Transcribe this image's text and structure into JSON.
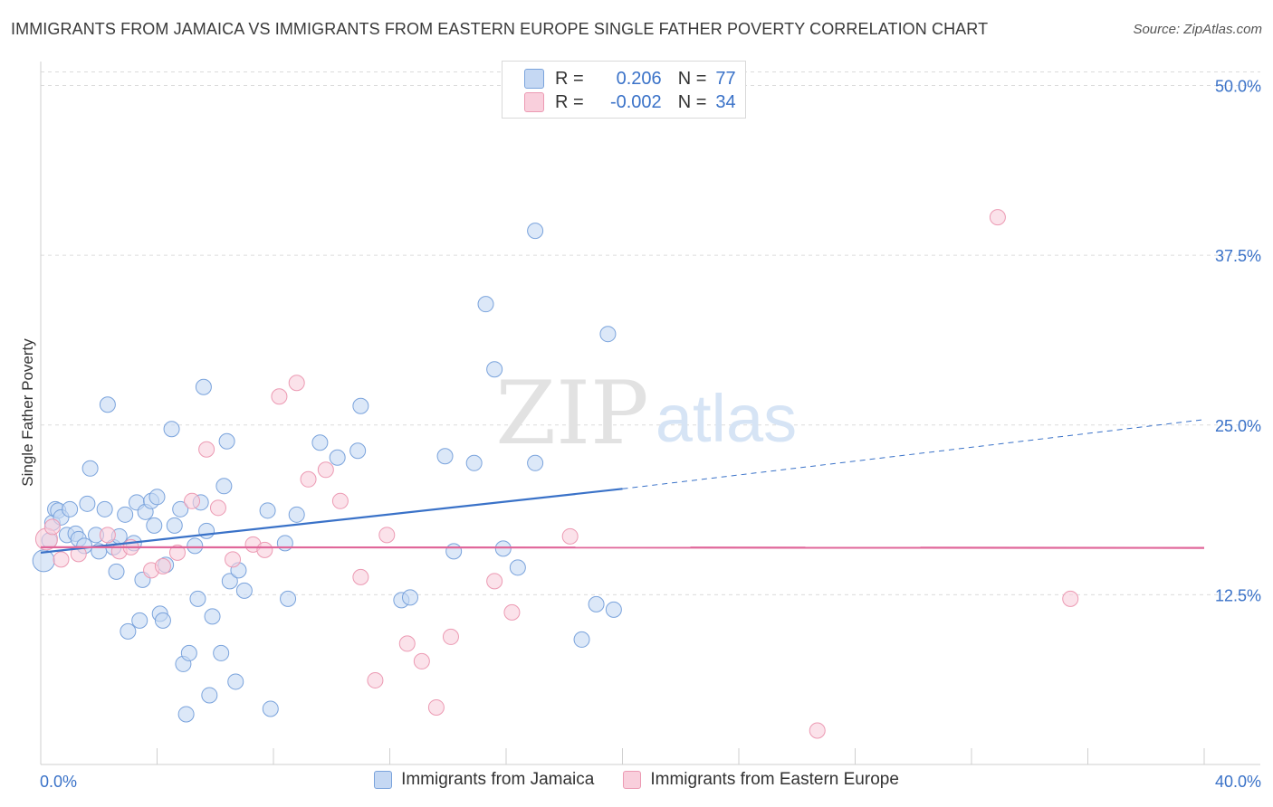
{
  "title": "IMMIGRANTS FROM JAMAICA VS IMMIGRANTS FROM EASTERN EUROPE SINGLE FATHER POVERTY CORRELATION CHART",
  "source": "Source: ZipAtlas.com",
  "watermark": {
    "zip": "ZIP",
    "atlas": "atlas"
  },
  "stats": [
    {
      "r_label": "R =",
      "r_value": "0.206",
      "n_label": "N =",
      "n_value": "77",
      "color": "#7aa3dc"
    },
    {
      "r_label": "R =",
      "r_value": "-0.002",
      "n_label": "N =",
      "n_value": "34",
      "color": "#ec9ab3"
    }
  ],
  "legend": [
    {
      "label": "Immigrants from Jamaica",
      "color": "#7aa3dc"
    },
    {
      "label": "Immigrants from Eastern Europe",
      "color": "#ec9ab3"
    }
  ],
  "chart_data": {
    "type": "scatter",
    "ylabel": "Single Father Poverty",
    "xlim": [
      0,
      40
    ],
    "ylim": [
      0,
      51.5
    ],
    "x_tick_labels": [
      {
        "value": 0,
        "label": "0.0%"
      },
      {
        "value": 40,
        "label": "40.0%"
      }
    ],
    "y_tick_labels": [
      {
        "value": 12.5,
        "label": "12.5%"
      },
      {
        "value": 25,
        "label": "25.0%"
      },
      {
        "value": 37.5,
        "label": "37.5%"
      },
      {
        "value": 50,
        "label": "50.0%"
      }
    ],
    "grid": true,
    "series": [
      {
        "name": "Immigrants from Jamaica",
        "color": "#7aa3dc",
        "fill": "#c5d8f3",
        "trend": {
          "x0": 0,
          "y0": 15.6,
          "x1": 20,
          "y1": 20.3,
          "x_dash_end": 40,
          "y_dash_end": 25.4
        },
        "points": [
          [
            0.1,
            15.0
          ],
          [
            0.3,
            16.5
          ],
          [
            0.4,
            17.8
          ],
          [
            0.5,
            18.8
          ],
          [
            0.6,
            18.7
          ],
          [
            0.7,
            18.2
          ],
          [
            0.9,
            16.9
          ],
          [
            1.0,
            18.8
          ],
          [
            1.2,
            17.0
          ],
          [
            1.3,
            16.6
          ],
          [
            1.5,
            16.1
          ],
          [
            1.6,
            19.2
          ],
          [
            1.7,
            21.8
          ],
          [
            1.9,
            16.9
          ],
          [
            2.0,
            15.7
          ],
          [
            2.2,
            18.8
          ],
          [
            2.3,
            26.5
          ],
          [
            2.5,
            16.0
          ],
          [
            2.6,
            14.2
          ],
          [
            2.7,
            16.8
          ],
          [
            2.9,
            18.4
          ],
          [
            3.0,
            9.8
          ],
          [
            3.2,
            16.3
          ],
          [
            3.3,
            19.3
          ],
          [
            3.4,
            10.6
          ],
          [
            3.5,
            13.6
          ],
          [
            3.6,
            18.6
          ],
          [
            3.8,
            19.4
          ],
          [
            3.9,
            17.6
          ],
          [
            4.0,
            19.7
          ],
          [
            4.1,
            11.1
          ],
          [
            4.2,
            10.6
          ],
          [
            4.3,
            14.7
          ],
          [
            4.5,
            24.7
          ],
          [
            4.6,
            17.6
          ],
          [
            4.8,
            18.8
          ],
          [
            4.9,
            7.4
          ],
          [
            5.0,
            3.7
          ],
          [
            5.1,
            8.2
          ],
          [
            5.3,
            16.1
          ],
          [
            5.4,
            12.2
          ],
          [
            5.5,
            19.3
          ],
          [
            5.6,
            27.8
          ],
          [
            5.7,
            17.2
          ],
          [
            5.8,
            5.1
          ],
          [
            5.9,
            10.9
          ],
          [
            6.2,
            8.2
          ],
          [
            6.3,
            20.5
          ],
          [
            6.4,
            23.8
          ],
          [
            6.5,
            13.5
          ],
          [
            6.7,
            6.1
          ],
          [
            6.8,
            14.3
          ],
          [
            7.0,
            12.8
          ],
          [
            7.8,
            18.7
          ],
          [
            7.9,
            4.1
          ],
          [
            8.4,
            16.3
          ],
          [
            8.5,
            12.2
          ],
          [
            8.8,
            18.4
          ],
          [
            9.6,
            23.7
          ],
          [
            10.2,
            22.6
          ],
          [
            10.9,
            23.1
          ],
          [
            11.0,
            26.4
          ],
          [
            12.4,
            12.1
          ],
          [
            12.7,
            12.3
          ],
          [
            13.9,
            22.7
          ],
          [
            14.2,
            15.7
          ],
          [
            14.9,
            22.2
          ],
          [
            15.3,
            33.9
          ],
          [
            15.6,
            29.1
          ],
          [
            15.9,
            15.9
          ],
          [
            16.4,
            14.5
          ],
          [
            17.0,
            22.2
          ],
          [
            17.0,
            39.3
          ],
          [
            18.6,
            9.2
          ],
          [
            19.1,
            11.8
          ],
          [
            19.5,
            31.7
          ],
          [
            19.7,
            11.4
          ]
        ]
      },
      {
        "name": "Immigrants from Eastern Europe",
        "color": "#ec9ab3",
        "fill": "#f9cfdc",
        "trend": {
          "x0": 0,
          "y0": 16.0,
          "x1": 40,
          "y1": 15.95
        },
        "points": [
          [
            0.2,
            16.6
          ],
          [
            0.4,
            17.5
          ],
          [
            0.7,
            15.1
          ],
          [
            1.3,
            15.5
          ],
          [
            2.3,
            16.9
          ],
          [
            2.7,
            15.7
          ],
          [
            3.1,
            16.0
          ],
          [
            3.8,
            14.3
          ],
          [
            4.2,
            14.6
          ],
          [
            4.7,
            15.6
          ],
          [
            5.2,
            19.4
          ],
          [
            5.7,
            23.2
          ],
          [
            6.1,
            18.9
          ],
          [
            6.6,
            15.1
          ],
          [
            7.3,
            16.2
          ],
          [
            7.7,
            15.8
          ],
          [
            8.2,
            27.1
          ],
          [
            8.8,
            28.1
          ],
          [
            9.2,
            21.0
          ],
          [
            9.8,
            21.7
          ],
          [
            10.3,
            19.4
          ],
          [
            11.0,
            13.8
          ],
          [
            11.5,
            6.2
          ],
          [
            11.9,
            16.9
          ],
          [
            12.6,
            8.9
          ],
          [
            13.1,
            7.6
          ],
          [
            13.6,
            4.2
          ],
          [
            14.1,
            9.4
          ],
          [
            15.6,
            13.5
          ],
          [
            16.2,
            11.2
          ],
          [
            18.2,
            16.8
          ],
          [
            26.7,
            2.5
          ],
          [
            32.9,
            40.3
          ],
          [
            35.4,
            12.2
          ]
        ]
      }
    ]
  }
}
